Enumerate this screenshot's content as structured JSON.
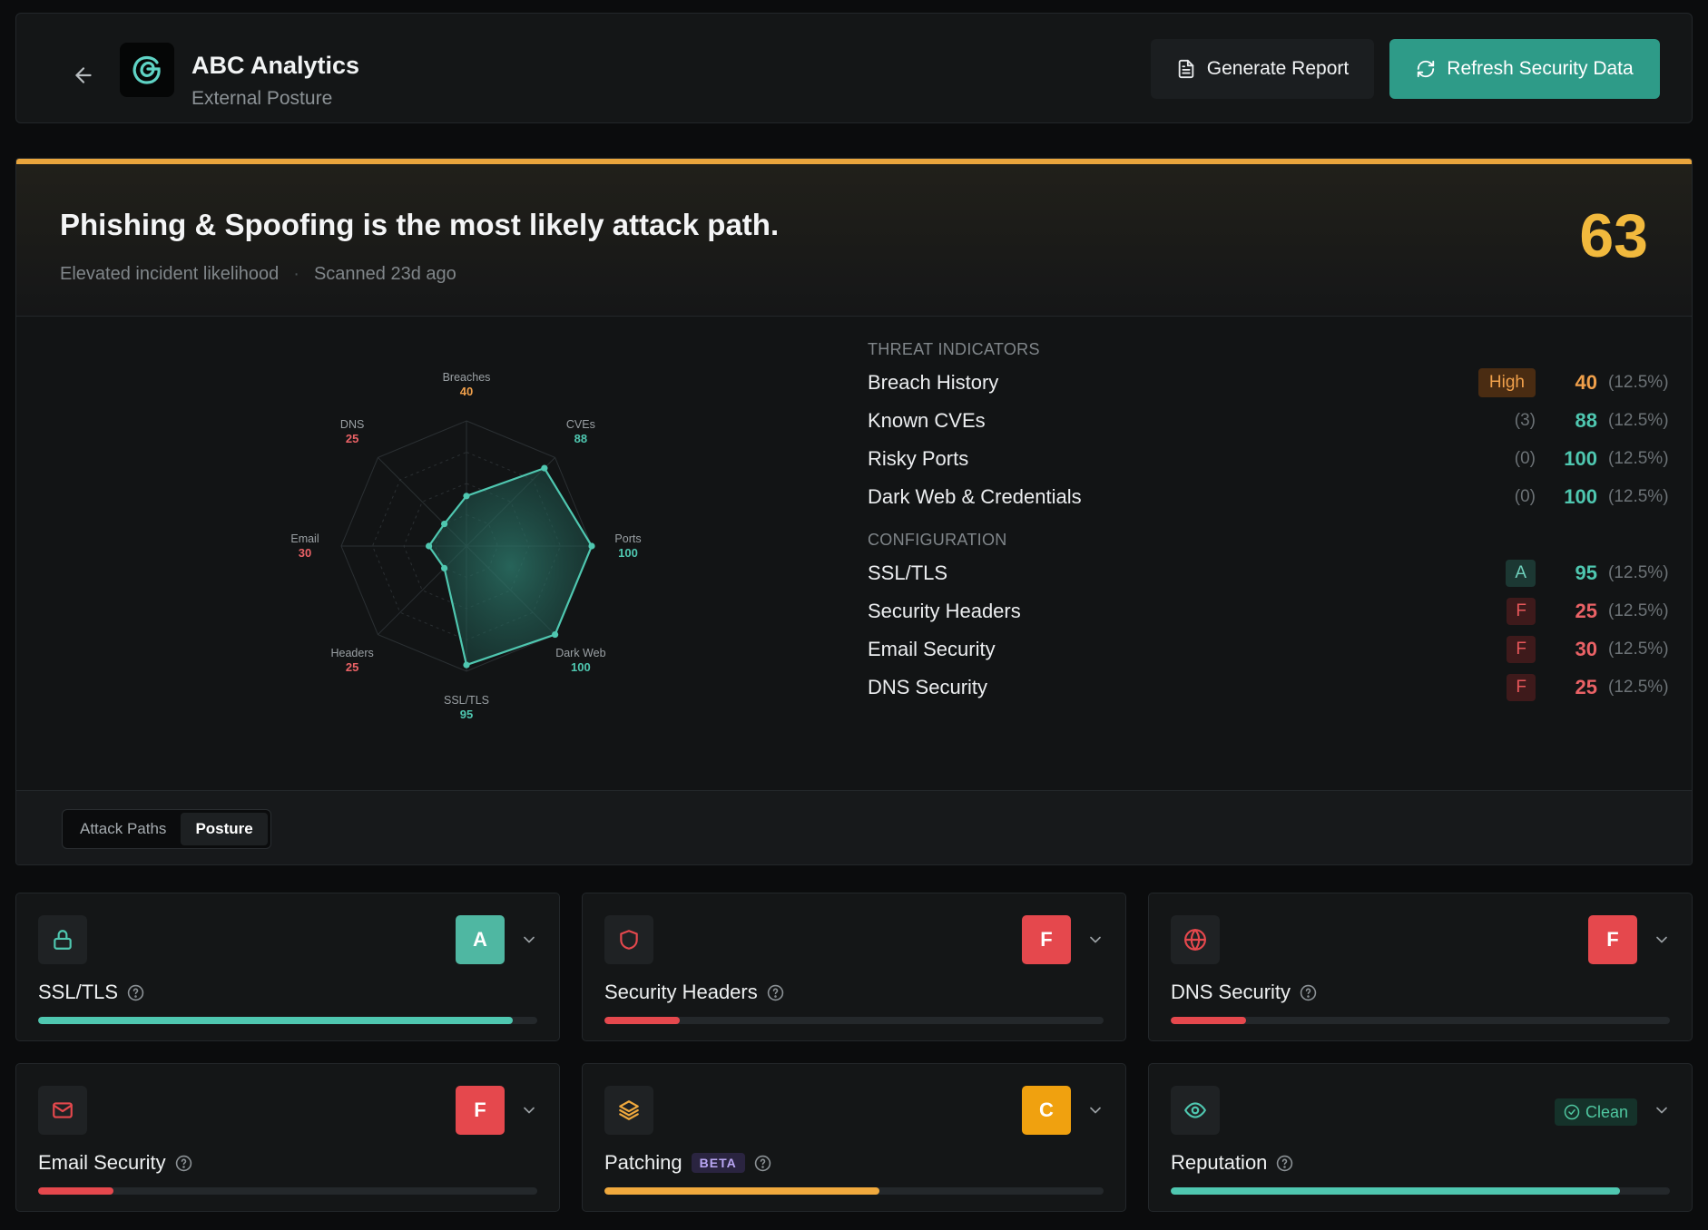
{
  "header": {
    "title": "ABC Analytics",
    "subtitle": "External Posture",
    "generate_report_label": "Generate Report",
    "refresh_label": "Refresh Security Data"
  },
  "hero": {
    "headline": "Phishing & Spoofing is the most likely attack path.",
    "likelihood": "Elevated incident likelihood",
    "separator": "·",
    "scanned": "Scanned 23d ago",
    "score": "63",
    "accent_color": "#e9a53c"
  },
  "radar": {
    "axes": [
      {
        "label": "Breaches",
        "value": 40,
        "color": "#f0a04b"
      },
      {
        "label": "CVEs",
        "value": 88,
        "color": "#4fc7b0"
      },
      {
        "label": "Ports",
        "value": 100,
        "color": "#4fc7b0"
      },
      {
        "label": "Dark Web",
        "value": 100,
        "color": "#4fc7b0"
      },
      {
        "label": "SSL/TLS",
        "value": 95,
        "color": "#4fc7b0"
      },
      {
        "label": "Headers",
        "value": 25,
        "color": "#ea6266"
      },
      {
        "label": "Email",
        "value": 30,
        "color": "#ea6266"
      },
      {
        "label": "DNS",
        "value": 25,
        "color": "#ea6266"
      }
    ]
  },
  "threat_indicators": {
    "title": "THREAT INDICATORS",
    "rows": [
      {
        "label": "Breach History",
        "tag": "High",
        "value": "40",
        "weight": "(12.5%)"
      },
      {
        "label": "Known CVEs",
        "tag": "(3)",
        "value": "88",
        "weight": "(12.5%)"
      },
      {
        "label": "Risky Ports",
        "tag": "(0)",
        "value": "100",
        "weight": "(12.5%)"
      },
      {
        "label": "Dark Web & Credentials",
        "tag": "(0)",
        "value": "100",
        "weight": "(12.5%)"
      }
    ]
  },
  "configuration": {
    "title": "CONFIGURATION",
    "rows": [
      {
        "label": "SSL/TLS",
        "tag": "A",
        "value": "95",
        "weight": "(12.5%)"
      },
      {
        "label": "Security Headers",
        "tag": "F",
        "value": "25",
        "weight": "(12.5%)"
      },
      {
        "label": "Email Security",
        "tag": "F",
        "value": "30",
        "weight": "(12.5%)"
      },
      {
        "label": "DNS Security",
        "tag": "F",
        "value": "25",
        "weight": "(12.5%)"
      }
    ]
  },
  "tabs": [
    "Attack Paths",
    "Posture"
  ],
  "active_tab": "Posture",
  "cards": [
    {
      "name": "SSL/TLS",
      "grade": "A",
      "icon": "lock-icon",
      "progress": 0.95,
      "color": "#4fc7b0"
    },
    {
      "name": "Security Headers",
      "grade": "F",
      "icon": "shield-icon",
      "progress": 0.15,
      "color": "#e5484d"
    },
    {
      "name": "DNS Security",
      "grade": "F",
      "icon": "globe-icon",
      "progress": 0.15,
      "color": "#e5484d"
    },
    {
      "name": "Email Security",
      "grade": "F",
      "icon": "mail-icon",
      "progress": 0.15,
      "color": "#e5484d"
    },
    {
      "name": "Patching",
      "badge": "BETA",
      "grade": "C",
      "icon": "layers-icon",
      "progress": 0.55,
      "color": "#f0a93d"
    },
    {
      "name": "Reputation",
      "status": "Clean",
      "icon": "eye-icon",
      "progress": 0.9,
      "color": "#4fc7b0"
    }
  ],
  "colors": {
    "accent_teal": "#2e9b88",
    "grade_a": "#4fb7a2",
    "grade_f": "#e5484d",
    "grade_c": "#f0a10f"
  }
}
